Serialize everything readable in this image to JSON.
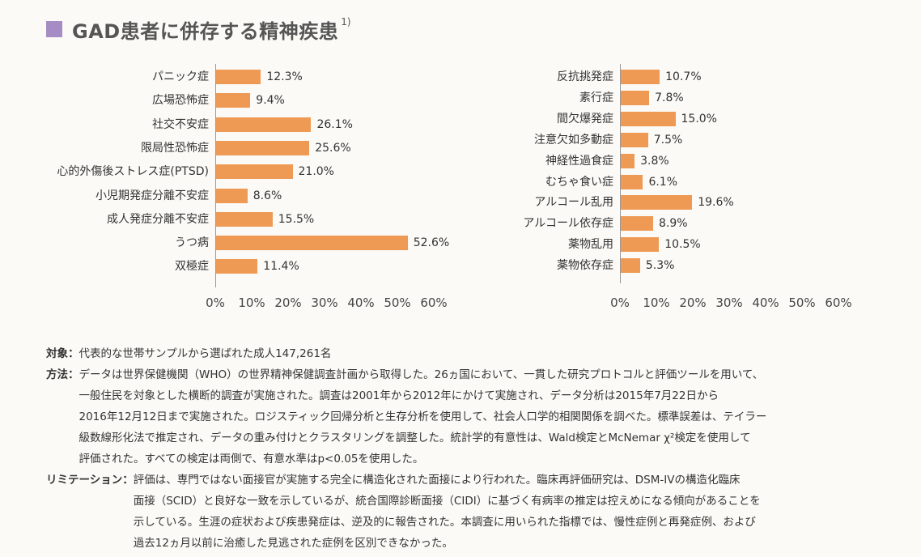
{
  "header": {
    "title": "GAD患者に併存する精神疾患",
    "superscript": "1)",
    "accent_color": "#a58cc4"
  },
  "chart_data": [
    {
      "type": "bar",
      "orientation": "horizontal",
      "categories": [
        "パニック症",
        "広場恐怖症",
        "社交不安症",
        "限局性恐怖症",
        "心的外傷後ストレス症(PTSD)",
        "小児期発症分離不安症",
        "成人発症分離不安症",
        "うつ病",
        "双極症"
      ],
      "values": [
        12.3,
        9.4,
        26.1,
        25.6,
        21.0,
        8.6,
        15.5,
        52.6,
        11.4
      ],
      "value_labels": [
        "12.3%",
        "9.4%",
        "26.1%",
        "25.6%",
        "21.0%",
        "8.6%",
        "15.5%",
        "52.6%",
        "11.4%"
      ],
      "xlim": [
        0,
        60
      ],
      "xticks": [
        "0%",
        "10%",
        "20%",
        "30%",
        "40%",
        "50%",
        "60%"
      ],
      "bar_color": "#ee9a55",
      "grid": false
    },
    {
      "type": "bar",
      "orientation": "horizontal",
      "categories": [
        "反抗挑発症",
        "素行症",
        "間欠爆発症",
        "注意欠如多動症",
        "神経性過食症",
        "むちゃ食い症",
        "アルコール乱用",
        "アルコール依存症",
        "薬物乱用",
        "薬物依存症"
      ],
      "values": [
        10.7,
        7.8,
        15.0,
        7.5,
        3.8,
        6.1,
        19.6,
        8.9,
        10.5,
        5.3
      ],
      "value_labels": [
        "10.7%",
        "7.8%",
        "15.0%",
        "7.5%",
        "3.8%",
        "6.1%",
        "19.6%",
        "8.9%",
        "10.5%",
        "5.3%"
      ],
      "xlim": [
        0,
        60
      ],
      "xticks": [
        "0%",
        "10%",
        "20%",
        "30%",
        "40%",
        "50%",
        "60%"
      ],
      "bar_color": "#ee9a55",
      "grid": false
    }
  ],
  "notes": {
    "target_term": "対象：",
    "target_lines": [
      "代表的な世帯サンプルから選ばれた成人147,261名"
    ],
    "method_term": "方法：",
    "method_lines": [
      "データは世界保健機関（WHO）の世界精神保健調査計画から取得した。26ヵ国において、一貫した研究プロトコルと評価ツールを用いて、",
      "一般住民を対象とした横断的調査が実施された。調査は2001年から2012年にかけて実施され、データ分析は2015年7月22日から",
      "2016年12月12日まで実施された。ロジスティック回帰分析と生存分析を使用して、社会人口学的相関関係を調べた。標準誤差は、テイラー",
      "級数線形化法で推定され、データの重み付けとクラスタリングを調整した。統計学的有意性は、Wald検定とMcNemar χ²検定を使用して",
      "評価された。すべての検定は両側で、有意水準はp<0.05を使用した。"
    ],
    "limitation_term": "リミテーション：",
    "limitation_lines": [
      "評価は、専門ではない面接官が実施する完全に構造化された面接により行われた。臨床再評価研究は、DSM-IVの構造化臨床",
      "面接（SCID）と良好な一致を示しているが、統合国際診断面接（CIDI）に基づく有病率の推定は控えめになる傾向があることを",
      "示している。生涯の症状および疾患発症は、逆及的に報告された。本調査に用いられた指標では、慢性症例と再発症例、および",
      "過去12ヵ月以前に治癒した見逃された症例を区別できなかった。"
    ]
  }
}
